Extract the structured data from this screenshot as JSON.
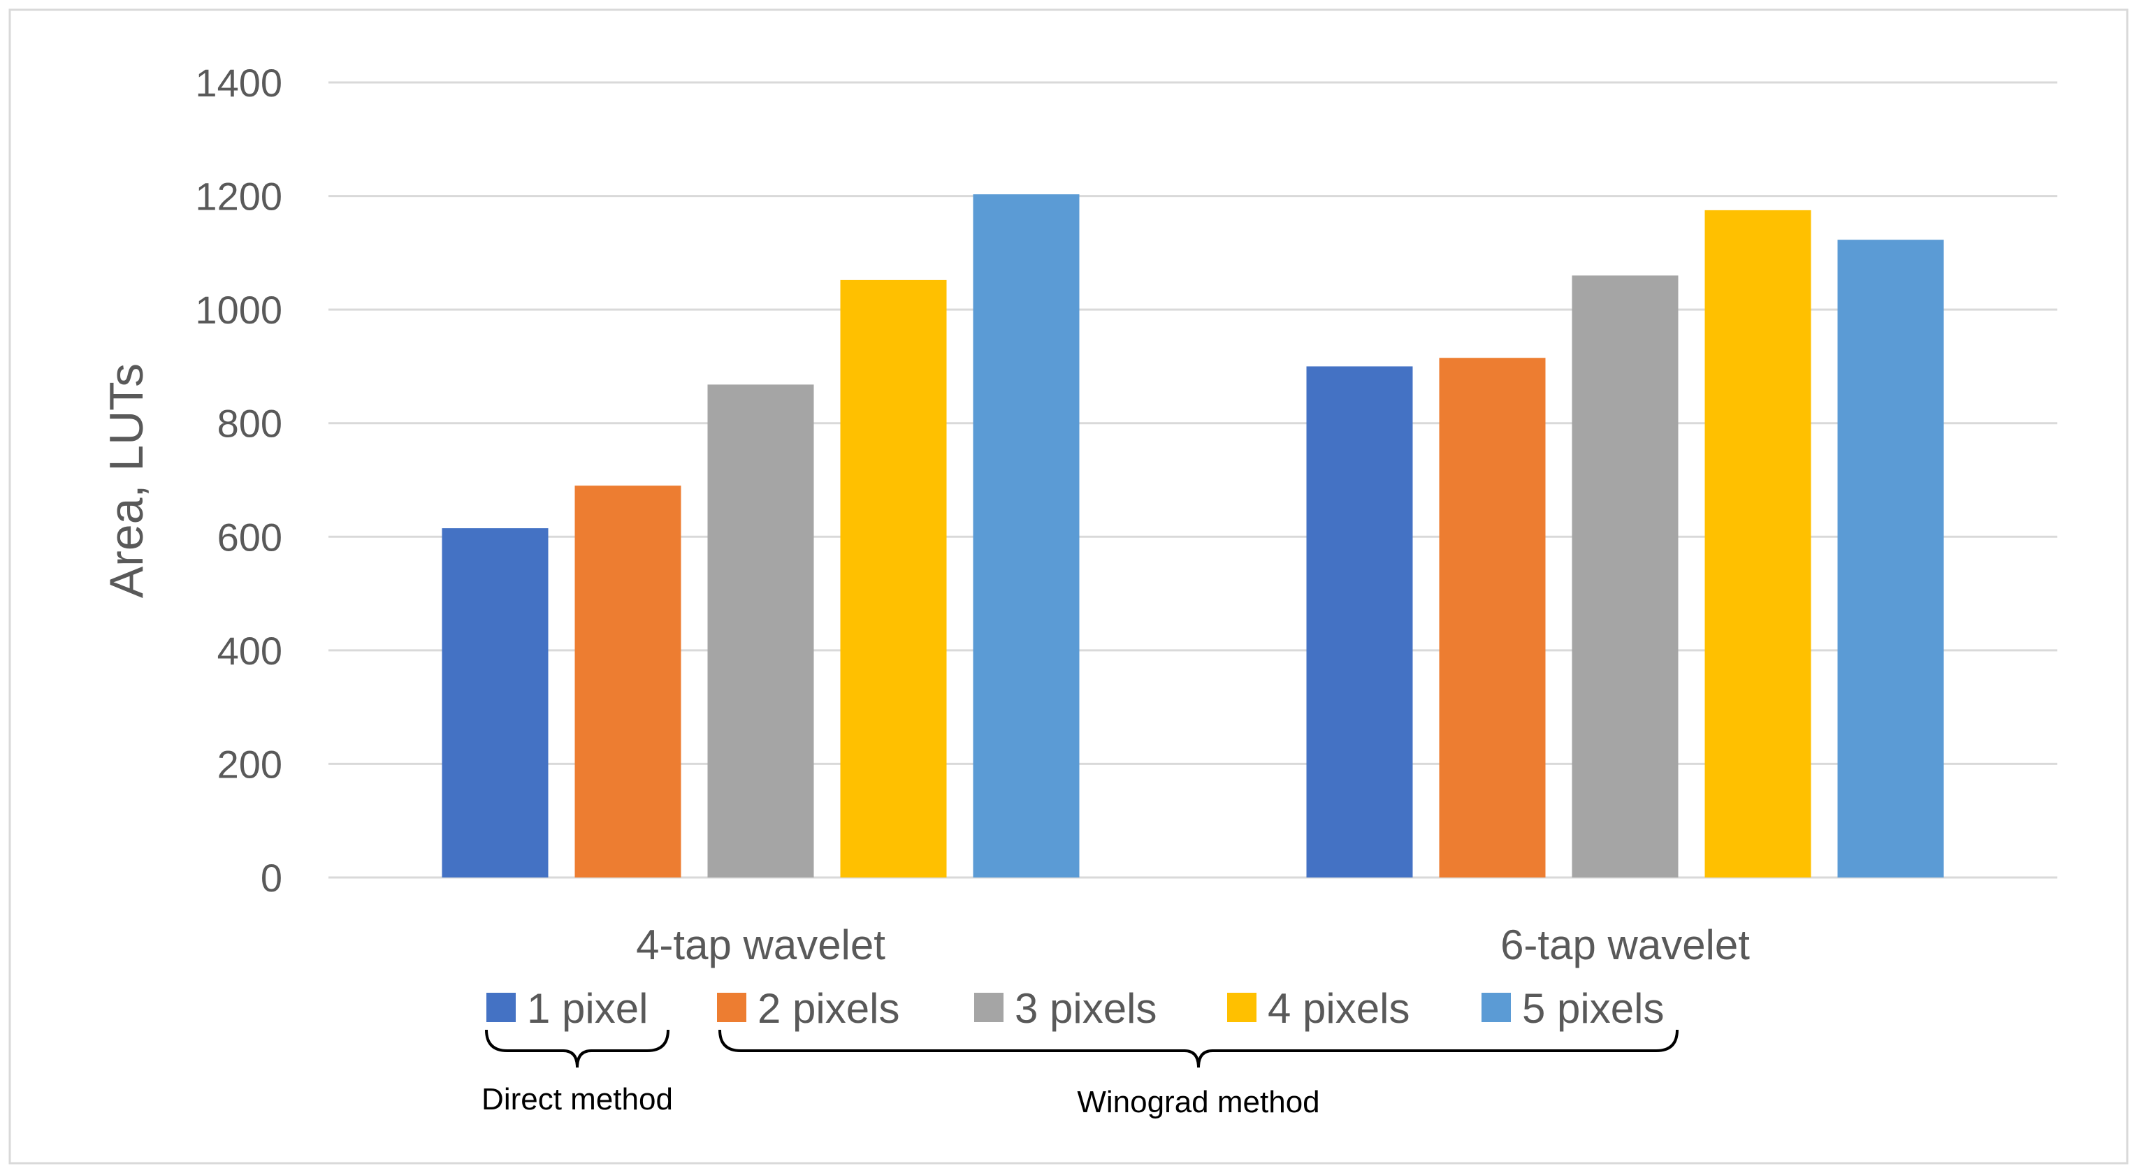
{
  "chart_data": {
    "type": "bar",
    "categories": [
      "4-tap wavelet",
      "6-tap wavelet"
    ],
    "series": [
      {
        "name": "1 pixel",
        "color": "#4472c4",
        "values": [
          615,
          900
        ]
      },
      {
        "name": "2 pixels",
        "color": "#ed7d31",
        "values": [
          690,
          915
        ]
      },
      {
        "name": "3 pixels",
        "color": "#a5a5a5",
        "values": [
          868,
          1060
        ]
      },
      {
        "name": "4 pixels",
        "color": "#ffc000",
        "values": [
          1052,
          1175
        ]
      },
      {
        "name": "5 pixels",
        "color": "#5b9bd5",
        "values": [
          1203,
          1123
        ]
      }
    ],
    "ylabel": "Area, LUTs",
    "xlabel": "",
    "ylim": [
      0,
      1400
    ],
    "yticks": [
      0,
      200,
      400,
      600,
      800,
      1000,
      1200,
      1400
    ],
    "grid": true,
    "legend_position": "bottom",
    "annotations": [
      {
        "text": "Direct method",
        "covers": [
          "1 pixel"
        ]
      },
      {
        "text": "Winograd method",
        "covers": [
          "2 pixels",
          "3 pixels",
          "4 pixels",
          "5 pixels"
        ]
      }
    ]
  }
}
